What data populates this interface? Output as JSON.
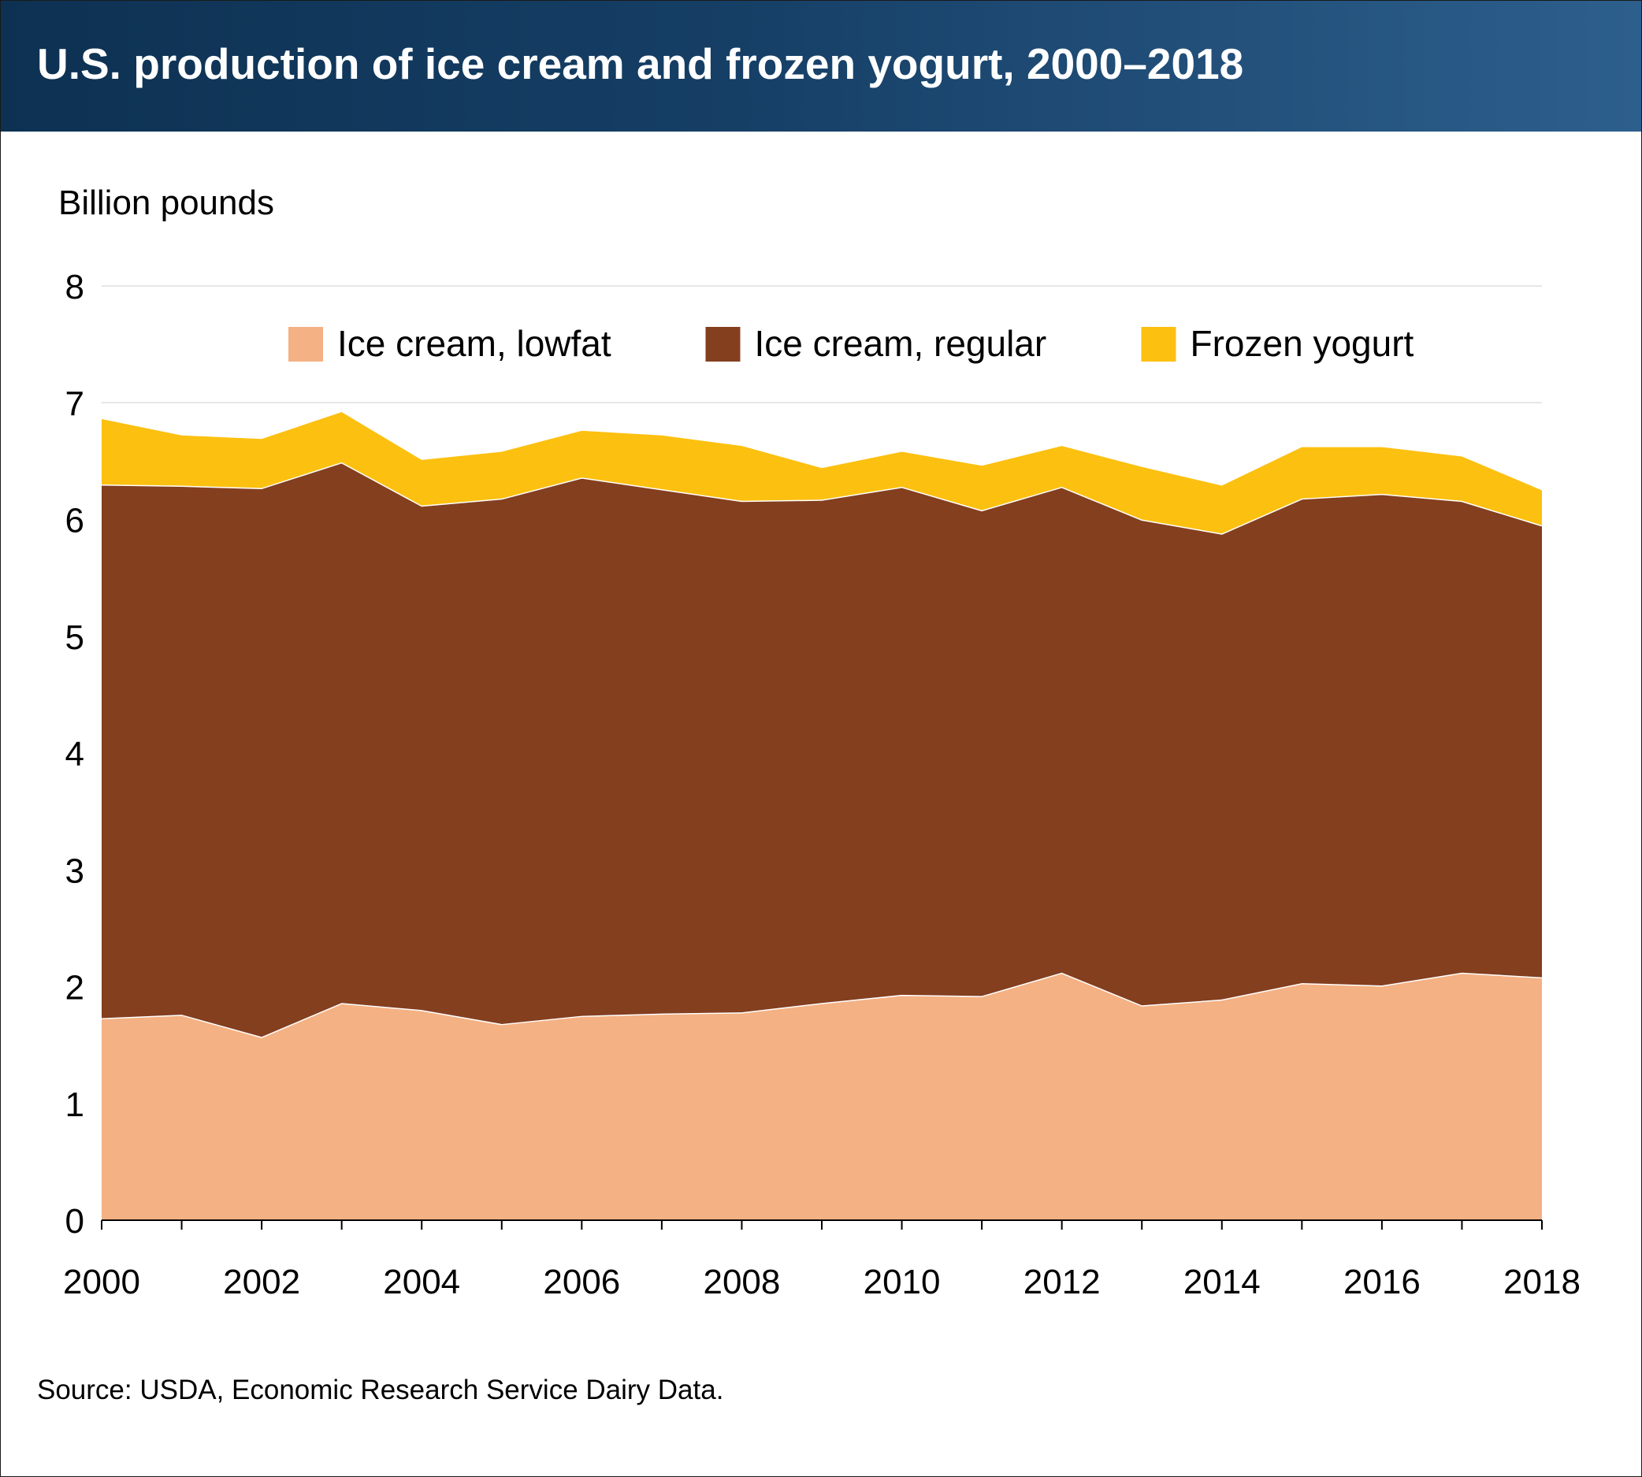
{
  "header": {
    "title": "U.S. production of ice cream and frozen yogurt, 2000–2018"
  },
  "source": "Source: USDA, Economic Research Service Dairy Data.",
  "chart_data": {
    "type": "area",
    "stacked": true,
    "title": "U.S. production of ice cream and frozen yogurt, 2000–2018",
    "ylabel": "Billion pounds",
    "xlabel": "",
    "xlim": [
      2000,
      2018
    ],
    "ylim": [
      0,
      8
    ],
    "grid": true,
    "legend_position": "top",
    "x": [
      2000,
      2001,
      2002,
      2003,
      2004,
      2005,
      2006,
      2007,
      2008,
      2009,
      2010,
      2011,
      2012,
      2013,
      2014,
      2015,
      2016,
      2017,
      2018
    ],
    "x_ticks": [
      "2000",
      "2002",
      "2004",
      "2006",
      "2008",
      "2010",
      "2012",
      "2014",
      "2016",
      "2018"
    ],
    "y_ticks": [
      "0",
      "1",
      "2",
      "3",
      "4",
      "5",
      "6",
      "7",
      "8"
    ],
    "series": [
      {
        "name": "Ice cream, lowfat",
        "color": "#f4b183",
        "values": [
          1.73,
          1.76,
          1.57,
          1.86,
          1.8,
          1.68,
          1.75,
          1.77,
          1.78,
          1.86,
          1.93,
          1.92,
          2.12,
          1.84,
          1.89,
          2.03,
          2.01,
          2.12,
          2.08
        ]
      },
      {
        "name": "Ice cream, regular",
        "color": "#843f1f",
        "values": [
          4.57,
          4.53,
          4.7,
          4.63,
          4.32,
          4.5,
          4.61,
          4.49,
          4.38,
          4.31,
          4.35,
          4.16,
          4.16,
          4.16,
          3.99,
          4.15,
          4.21,
          4.04,
          3.87
        ]
      },
      {
        "name": "Frozen yogurt",
        "color": "#fcc010",
        "values": [
          0.56,
          0.43,
          0.42,
          0.43,
          0.39,
          0.4,
          0.4,
          0.46,
          0.47,
          0.27,
          0.3,
          0.38,
          0.35,
          0.45,
          0.41,
          0.44,
          0.4,
          0.38,
          0.3
        ]
      }
    ]
  }
}
